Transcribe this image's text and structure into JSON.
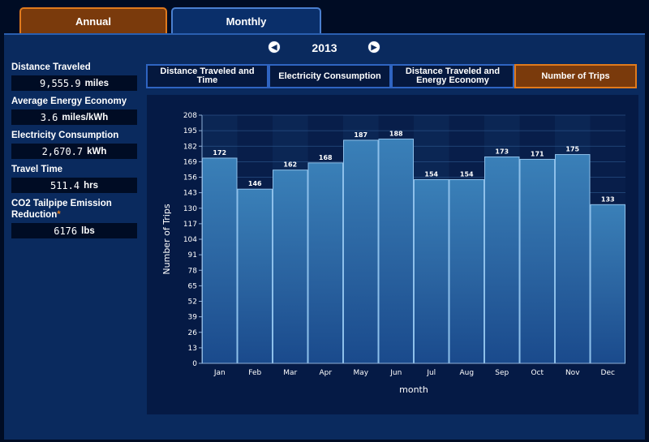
{
  "tabs": [
    {
      "label": "Annual",
      "active": false
    },
    {
      "label": "Monthly",
      "active": true
    }
  ],
  "year_nav": {
    "year": "2013",
    "prev_icon": "chevron-left-icon",
    "next_icon": "chevron-right-icon"
  },
  "stats": [
    {
      "label": "Distance Traveled",
      "value": "9,555.9",
      "unit": "miles"
    },
    {
      "label": "Average Energy Economy",
      "value": "3.6",
      "unit": "miles/kWh"
    },
    {
      "label": "Electricity Consumption",
      "value": "2,670.7",
      "unit": "kWh"
    },
    {
      "label": "Travel Time",
      "value": "511.4",
      "unit": "hrs"
    },
    {
      "label": "CO2 Tailpipe Emission Reduction",
      "asterisk": "*",
      "value": "6176",
      "unit": "lbs"
    }
  ],
  "subtabs": [
    {
      "label": "Distance Traveled and Time",
      "active": false
    },
    {
      "label": "Electricity Consumption",
      "active": false
    },
    {
      "label": "Distance Traveled and Energy Economy",
      "active": false
    },
    {
      "label": "Number of Trips",
      "active": true
    }
  ],
  "colors": {
    "accent": "#e07a1d",
    "bar": "#2e6fa6",
    "panel": "#0a2a5e"
  },
  "chart_data": {
    "type": "bar",
    "categories": [
      "Jan",
      "Feb",
      "Mar",
      "Apr",
      "May",
      "Jun",
      "Jul",
      "Aug",
      "Sep",
      "Oct",
      "Nov",
      "Dec"
    ],
    "values": [
      172,
      146,
      162,
      168,
      187,
      188,
      154,
      154,
      173,
      171,
      175,
      133
    ],
    "xlabel": "month",
    "ylabel": "Number of Trips",
    "ylim": [
      0,
      208
    ],
    "yticks": [
      0,
      13,
      26,
      39,
      52,
      65,
      78,
      91,
      104,
      117,
      130,
      143,
      156,
      169,
      182,
      195,
      208
    ],
    "grid": true
  }
}
